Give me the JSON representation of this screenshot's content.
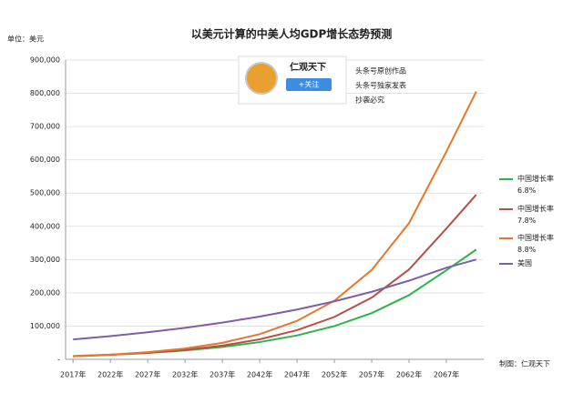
{
  "chart_data": {
    "type": "line",
    "title": "以美元计算的中美人均GDP增长态势预测",
    "y_unit": "单位：美元",
    "credit": "制图：仁观天下",
    "x": [
      2017,
      2022,
      2027,
      2032,
      2037,
      2042,
      2047,
      2052,
      2057,
      2062,
      2067,
      2071
    ],
    "series": [
      {
        "name": "中国增长率\n6.8%",
        "color": "#2db34a",
        "values": [
          10000,
          13900,
          19300,
          26800,
          37300,
          51800,
          72000,
          100000,
          139000,
          193000,
          268000,
          330000
        ]
      },
      {
        "name": "中国增长率\n7.8%",
        "color": "#b5504b",
        "values": [
          9200,
          13400,
          19500,
          28300,
          41300,
          60200,
          87600,
          127500,
          185600,
          270200,
          393400,
          495000
        ]
      },
      {
        "name": "中国增长率\n8.8%",
        "color": "#e8762b",
        "values": [
          9200,
          14000,
          21400,
          32600,
          49700,
          75800,
          115600,
          176200,
          268700,
          409600,
          624500,
          805000
        ]
      },
      {
        "name": "美国",
        "color": "#7e5fa6",
        "values": [
          60000,
          69900,
          81400,
          94800,
          110400,
          128600,
          149700,
          174400,
          203100,
          236600,
          275500,
          300000
        ]
      }
    ],
    "xlim": [
      2016,
      2072
    ],
    "xticks": [
      {
        "value": 2017,
        "label": "2017年"
      },
      {
        "value": 2022,
        "label": "2022年"
      },
      {
        "value": 2027,
        "label": "2027年"
      },
      {
        "value": 2032,
        "label": "2032年"
      },
      {
        "value": 2037,
        "label": "2037年"
      },
      {
        "value": 2042,
        "label": "2042年"
      },
      {
        "value": 2047,
        "label": "2047年"
      },
      {
        "value": 2052,
        "label": "2052年"
      },
      {
        "value": 2057,
        "label": "2057年"
      },
      {
        "value": 2062,
        "label": "2062年"
      },
      {
        "value": 2067,
        "label": "2067年"
      }
    ],
    "ylim": [
      0,
      900000
    ],
    "yticks": [
      {
        "value": 0,
        "label": "-"
      },
      {
        "value": 100000,
        "label": "100,000"
      },
      {
        "value": 200000,
        "label": "200,000"
      },
      {
        "value": 300000,
        "label": "300,000"
      },
      {
        "value": 400000,
        "label": "400,000"
      },
      {
        "value": 500000,
        "label": "500,000"
      },
      {
        "value": 600000,
        "label": "600,000"
      },
      {
        "value": 700000,
        "label": "700,000"
      },
      {
        "value": 800000,
        "label": "800,000"
      },
      {
        "value": 900000,
        "label": "900,000"
      }
    ],
    "grid": true,
    "legend": "right"
  },
  "watermark": {
    "name": "仁观天下",
    "button": "+关注",
    "lines": [
      "头条号原创作品",
      "头条号独家发表",
      "抄袭必究"
    ]
  }
}
